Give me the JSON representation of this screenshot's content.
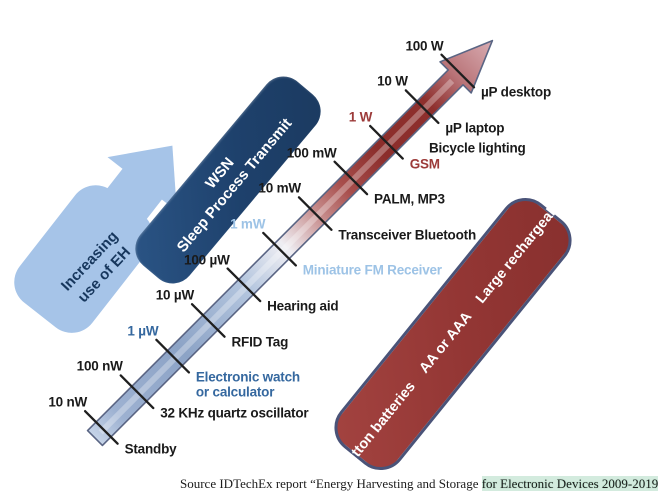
{
  "scale": {
    "decades": [
      {
        "power": "10 nW",
        "power_color": "text",
        "device": "Standby",
        "device_color": "text"
      },
      {
        "power": "100 nW",
        "power_color": "text",
        "device": "32 KHz quartz oscillator",
        "device_color": "text"
      },
      {
        "power": "1 µW",
        "power_color": "blue",
        "device": "Electronic watch\nor calculator",
        "device_color": "blue"
      },
      {
        "power": "10 µW",
        "power_color": "text",
        "device": "RFID Tag",
        "device_color": "text"
      },
      {
        "power": "100 µW",
        "power_color": "text",
        "device": "Hearing aid",
        "device_color": "text"
      },
      {
        "power": "1 mW",
        "power_color": "lightblue",
        "device": "Miniature FM Receiver",
        "device_color": "lightblue"
      },
      {
        "power": "10 mW",
        "power_color": "text",
        "device": "Transceiver Bluetooth",
        "device_color": "text"
      },
      {
        "power": "100 mW",
        "power_color": "text",
        "device": "PALM, MP3",
        "device_color": "text"
      },
      {
        "power": "1 W",
        "power_color": "red",
        "device": "GSM",
        "device_color": "red"
      },
      {
        "power": "10 W",
        "power_color": "text",
        "device": "µP laptop",
        "device_color": "text"
      },
      {
        "power": "100 W",
        "power_color": "text",
        "device": "µP desktop",
        "device_color": "text"
      }
    ],
    "extra_device_label": "Bicycle lighting"
  },
  "eh_arrow": {
    "label_line1": "Increasing",
    "label_line2": "use of EH"
  },
  "wsn_box": {
    "line1": "WSN",
    "line2": "Sleep Process Transmit"
  },
  "battery_box": {
    "segments": [
      "Button batteries",
      "AA or AAA",
      "Large rechargeable"
    ]
  },
  "source": {
    "prefix": "Source IDTechEx report “Energy Harvesting and Storage ",
    "highlight": "for Electronic Devices 2009-2019",
    "suffix": "”."
  },
  "colors": {
    "text": "#1a1a1a",
    "blue": "#35689F",
    "lightblue": "#9DC3E6",
    "red": "#9C3A39",
    "wsn_fill": "#1F4268",
    "battery_fill": "#933634",
    "battery_border": "#4A5378",
    "eh_fill": "#A6C4E8",
    "arrow_blue": "#8CA3C6",
    "arrow_red": "#8B2D2B"
  }
}
